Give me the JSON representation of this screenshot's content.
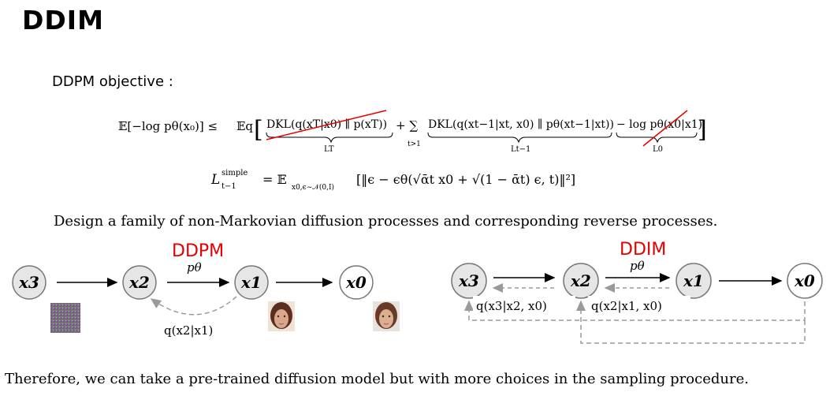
{
  "title": "DDIM",
  "objective_label": "DDPM objective :",
  "equations": {
    "line1": {
      "lhs": "𝔼[−log pθ(x₀)] ≤",
      "expect": "𝔼q",
      "term_LT": "DKL(q(xT|x0) ∥ p(xT))",
      "plus_sum": "+ ∑",
      "sum_index": "t>1",
      "term_Lt1": "DKL(q(xt−1|xt, x0) ∥ pθ(xt−1|xt))",
      "term_L0": "− log pθ(x0|x1)",
      "brace_LT": "LT",
      "brace_Lt1": "Lt−1",
      "brace_L0": "L0"
    },
    "line2": {
      "lhs": "L",
      "lhs_sup": "simple",
      "lhs_sub": "t−1",
      "eq": "= 𝔼",
      "eq_sub": "x0,ϵ∼𝒩(0,I)",
      "rhs": "[‖ϵ − ϵθ(√ᾱt x0 + √(1 − ᾱt) ϵ, t)‖²]"
    }
  },
  "design_text": "Design a family of non-Markovian diffusion processes and corresponding reverse processes.",
  "ddpm_diagram": {
    "label": "DDPM",
    "nodes": [
      "x3",
      "x2",
      "x1",
      "x0"
    ],
    "edge_label": "pθ",
    "forward_label": "q(x2|x1)"
  },
  "ddim_diagram": {
    "label": "DDIM",
    "nodes": [
      "x3",
      "x2",
      "x1",
      "x0"
    ],
    "edge_label": "pθ",
    "forward_label_1": "q(x3|x2, x0)",
    "forward_label_2": "q(x2|x1, x0)"
  },
  "therefore_text": "Therefore, we can take a pre-trained diffusion model but with more choices in the sampling procedure.",
  "colors": {
    "accent_red": "#e60000",
    "node_fill": "#e6e6e6",
    "dashed_gray": "#9a9a9a"
  }
}
